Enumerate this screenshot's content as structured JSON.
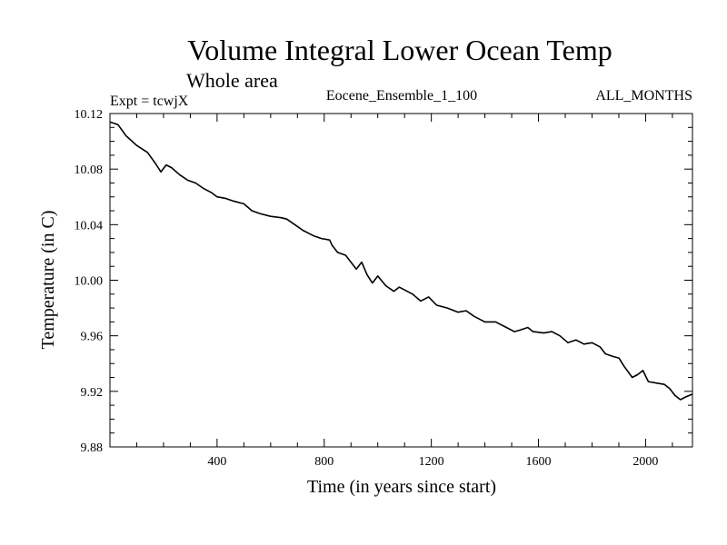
{
  "chart_data": {
    "type": "line",
    "title": "Volume Integral Lower Ocean Temp",
    "subtitle": "Whole area",
    "experiment": "Expt = tcwjX",
    "ensemble": "Eocene_Ensemble_1_100",
    "months": "ALL_MONTHS",
    "xlabel": "Time (in years since start)",
    "ylabel": "Temperature (in C)",
    "xlim": [
      0,
      2175
    ],
    "ylim": [
      9.88,
      10.12
    ],
    "x_ticks": [
      "400",
      "800",
      "1200",
      "1600",
      "2000"
    ],
    "y_ticks": [
      "9.88",
      "9.92",
      "9.96",
      "10.00",
      "10.04",
      "10.08",
      "10.12"
    ],
    "grid": false,
    "series": [
      {
        "x": [
          0,
          30,
          60,
          100,
          140,
          170,
          190,
          210,
          230,
          260,
          290,
          320,
          350,
          380,
          400,
          430,
          460,
          500,
          530,
          560,
          600,
          640,
          660,
          690,
          720,
          760,
          790,
          820,
          830,
          850,
          880,
          900,
          920,
          940,
          960,
          980,
          1000,
          1030,
          1060,
          1080,
          1100,
          1130,
          1160,
          1190,
          1220,
          1260,
          1300,
          1330,
          1360,
          1400,
          1440,
          1480,
          1510,
          1530,
          1560,
          1580,
          1620,
          1650,
          1680,
          1710,
          1740,
          1770,
          1800,
          1830,
          1850,
          1880,
          1900,
          1920,
          1950,
          1970,
          1990,
          2010,
          2040,
          2070,
          2090,
          2110,
          2130,
          2150,
          2175
        ],
        "y": [
          10.114,
          10.112,
          10.104,
          10.097,
          10.092,
          10.084,
          10.078,
          10.083,
          10.081,
          10.076,
          10.072,
          10.07,
          10.066,
          10.063,
          10.06,
          10.059,
          10.057,
          10.055,
          10.05,
          10.048,
          10.046,
          10.045,
          10.044,
          10.04,
          10.036,
          10.032,
          10.03,
          10.029,
          10.025,
          10.02,
          10.018,
          10.013,
          10.008,
          10.013,
          10.004,
          9.998,
          10.003,
          9.996,
          9.992,
          9.995,
          9.993,
          9.99,
          9.985,
          9.988,
          9.982,
          9.98,
          9.977,
          9.978,
          9.974,
          9.97,
          9.97,
          9.966,
          9.963,
          9.964,
          9.966,
          9.963,
          9.962,
          9.963,
          9.96,
          9.955,
          9.957,
          9.954,
          9.955,
          9.952,
          9.947,
          9.945,
          9.944,
          9.938,
          9.93,
          9.932,
          9.935,
          9.927,
          9.926,
          9.925,
          9.922,
          9.917,
          9.914,
          9.916,
          9.918
        ]
      }
    ]
  }
}
